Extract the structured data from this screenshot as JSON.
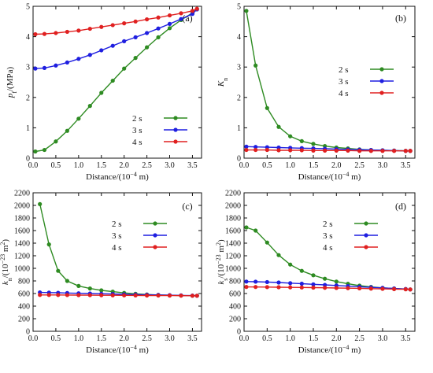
{
  "chart_data": [
    {
      "type": "line",
      "panel_label": "(a)",
      "xlabel_main": "Distance/(10",
      "xlabel_sup": "−4",
      "xlabel_end": " m)",
      "ylabel_main": "p",
      "ylabel_sub": "f",
      "ylabel_end": "/(MPa)",
      "xlim": [
        0,
        3.7
      ],
      "ylim": [
        0,
        5
      ],
      "xticks": [
        "0.0",
        "0.5",
        "1.0",
        "1.5",
        "2.0",
        "2.5",
        "3.0",
        "3.5"
      ],
      "yticks": [
        "0",
        "1",
        "2",
        "3",
        "4",
        "5"
      ],
      "legend": "right",
      "series": [
        {
          "name": "2 s",
          "color": "#2e8b22",
          "x": [
            0.05,
            0.25,
            0.5,
            0.75,
            1.0,
            1.25,
            1.5,
            1.75,
            2.0,
            2.25,
            2.5,
            2.75,
            3.0,
            3.25,
            3.5,
            3.6
          ],
          "y": [
            0.22,
            0.27,
            0.55,
            0.9,
            1.3,
            1.72,
            2.15,
            2.55,
            2.95,
            3.3,
            3.65,
            3.98,
            4.28,
            4.55,
            4.78,
            4.9
          ]
        },
        {
          "name": "3 s",
          "color": "#1f1fe0",
          "x": [
            0.05,
            0.25,
            0.5,
            0.75,
            1.0,
            1.25,
            1.5,
            1.75,
            2.0,
            2.25,
            2.5,
            2.75,
            3.0,
            3.25,
            3.5,
            3.6
          ],
          "y": [
            2.95,
            2.97,
            3.05,
            3.15,
            3.27,
            3.4,
            3.55,
            3.7,
            3.85,
            3.98,
            4.12,
            4.27,
            4.42,
            4.58,
            4.75,
            4.9
          ]
        },
        {
          "name": "4 s",
          "color": "#e02020",
          "x": [
            0.05,
            0.25,
            0.5,
            0.75,
            1.0,
            1.25,
            1.5,
            1.75,
            2.0,
            2.25,
            2.5,
            2.75,
            3.0,
            3.25,
            3.5,
            3.6
          ],
          "y": [
            4.08,
            4.09,
            4.12,
            4.16,
            4.2,
            4.26,
            4.32,
            4.38,
            4.44,
            4.5,
            4.57,
            4.63,
            4.7,
            4.77,
            4.85,
            4.92
          ]
        }
      ]
    },
    {
      "type": "line",
      "panel_label": "(b)",
      "xlabel_main": "Distance/(10",
      "xlabel_sup": "−4",
      "xlabel_end": " m)",
      "ylabel_main": "K",
      "ylabel_sub": "n",
      "ylabel_end": "",
      "xlim": [
        0,
        3.7
      ],
      "ylim": [
        0,
        5
      ],
      "xticks": [
        "0.0",
        "0.5",
        "1.0",
        "1.5",
        "2.0",
        "2.5",
        "3.0",
        "3.5"
      ],
      "yticks": [
        "0",
        "1",
        "2",
        "3",
        "4",
        "5"
      ],
      "legend": "right",
      "series": [
        {
          "name": "2 s",
          "color": "#2e8b22",
          "x": [
            0.05,
            0.25,
            0.5,
            0.75,
            1.0,
            1.25,
            1.5,
            1.75,
            2.0,
            2.25,
            2.5,
            2.75,
            3.0,
            3.25,
            3.5,
            3.6
          ],
          "y": [
            4.85,
            3.05,
            1.65,
            1.03,
            0.72,
            0.56,
            0.47,
            0.4,
            0.35,
            0.32,
            0.29,
            0.27,
            0.26,
            0.25,
            0.24,
            0.24
          ]
        },
        {
          "name": "3 s",
          "color": "#1f1fe0",
          "x": [
            0.05,
            0.25,
            0.5,
            0.75,
            1.0,
            1.25,
            1.5,
            1.75,
            2.0,
            2.25,
            2.5,
            2.75,
            3.0,
            3.25,
            3.5,
            3.6
          ],
          "y": [
            0.38,
            0.37,
            0.36,
            0.35,
            0.34,
            0.33,
            0.32,
            0.31,
            0.3,
            0.29,
            0.28,
            0.27,
            0.26,
            0.25,
            0.24,
            0.24
          ]
        },
        {
          "name": "4 s",
          "color": "#e02020",
          "x": [
            0.05,
            0.25,
            0.5,
            0.75,
            1.0,
            1.25,
            1.5,
            1.75,
            2.0,
            2.25,
            2.5,
            2.75,
            3.0,
            3.25,
            3.5,
            3.6
          ],
          "y": [
            0.27,
            0.27,
            0.27,
            0.26,
            0.26,
            0.26,
            0.25,
            0.25,
            0.25,
            0.25,
            0.24,
            0.24,
            0.24,
            0.24,
            0.24,
            0.24
          ]
        }
      ]
    },
    {
      "type": "line",
      "panel_label": "(c)",
      "xlabel_main": "Distance/(10",
      "xlabel_sup": "−4",
      "xlabel_end": " m)",
      "ylabel_main": "k",
      "ylabel_sub": "n",
      "ylabel_end": "/(10",
      "ylabel_sup": "−23",
      "ylabel_tail": " m",
      "ylabel_sup2": "2",
      "ylabel_close": ")",
      "xlim": [
        0,
        3.7
      ],
      "ylim": [
        0,
        2200
      ],
      "xticks": [
        "0.0",
        "0.5",
        "1.0",
        "1.5",
        "2.0",
        "2.5",
        "3.0",
        "3.5"
      ],
      "yticks": [
        "0",
        "200",
        "400",
        "600",
        "800",
        "1000",
        "1200",
        "1400",
        "1600",
        "1800",
        "2000",
        "2200"
      ],
      "legend": "top-right",
      "series": [
        {
          "name": "2 s",
          "color": "#2e8b22",
          "x": [
            0.15,
            0.35,
            0.55,
            0.75,
            1.0,
            1.25,
            1.5,
            1.75,
            2.0,
            2.25,
            2.5,
            2.75,
            3.0,
            3.25,
            3.5,
            3.6
          ],
          "y": [
            2020,
            1380,
            960,
            800,
            720,
            680,
            650,
            630,
            610,
            595,
            585,
            578,
            572,
            568,
            565,
            565
          ]
        },
        {
          "name": "3 s",
          "color": "#1f1fe0",
          "x": [
            0.15,
            0.35,
            0.55,
            0.75,
            1.0,
            1.25,
            1.5,
            1.75,
            2.0,
            2.25,
            2.5,
            2.75,
            3.0,
            3.25,
            3.5,
            3.6
          ],
          "y": [
            618,
            615,
            612,
            608,
            604,
            600,
            596,
            592,
            588,
            584,
            580,
            577,
            574,
            570,
            567,
            565
          ]
        },
        {
          "name": "4 s",
          "color": "#e02020",
          "x": [
            0.15,
            0.35,
            0.55,
            0.75,
            1.0,
            1.25,
            1.5,
            1.75,
            2.0,
            2.25,
            2.5,
            2.75,
            3.0,
            3.25,
            3.5,
            3.6
          ],
          "y": [
            578,
            578,
            577,
            576,
            575,
            574,
            573,
            572,
            571,
            570,
            569,
            568,
            567,
            566,
            565,
            565
          ]
        }
      ]
    },
    {
      "type": "line",
      "panel_label": "(d)",
      "xlabel_main": "Distance/(10",
      "xlabel_sup": "−4",
      "xlabel_end": " m)",
      "ylabel_main": "k",
      "ylabel_sub": "s",
      "ylabel_end": "/(10",
      "ylabel_sup": "−23",
      "ylabel_tail": " m",
      "ylabel_sup2": "2",
      "ylabel_close": ")",
      "xlim": [
        0,
        3.7
      ],
      "ylim": [
        0,
        2200
      ],
      "xticks": [
        "0.0",
        "0.5",
        "1.0",
        "1.5",
        "2.0",
        "2.5",
        "3.0",
        "3.5"
      ],
      "yticks": [
        "0",
        "200",
        "400",
        "600",
        "800",
        "1000",
        "1200",
        "1400",
        "1600",
        "1800",
        "2000",
        "2200"
      ],
      "legend": "top-right",
      "series": [
        {
          "name": "2 s",
          "color": "#2e8b22",
          "x": [
            0.05,
            0.25,
            0.5,
            0.75,
            1.0,
            1.25,
            1.5,
            1.75,
            2.0,
            2.25,
            2.5,
            2.75,
            3.0,
            3.25,
            3.5,
            3.6
          ],
          "y": [
            1650,
            1600,
            1410,
            1210,
            1060,
            960,
            890,
            835,
            790,
            755,
            725,
            705,
            690,
            680,
            670,
            665
          ]
        },
        {
          "name": "3 s",
          "color": "#1f1fe0",
          "x": [
            0.05,
            0.25,
            0.5,
            0.75,
            1.0,
            1.25,
            1.5,
            1.75,
            2.0,
            2.25,
            2.5,
            2.75,
            3.0,
            3.25,
            3.5,
            3.6
          ],
          "y": [
            790,
            788,
            782,
            775,
            765,
            756,
            746,
            737,
            728,
            718,
            708,
            698,
            690,
            680,
            672,
            665
          ]
        },
        {
          "name": "4 s",
          "color": "#e02020",
          "x": [
            0.05,
            0.25,
            0.5,
            0.75,
            1.0,
            1.25,
            1.5,
            1.75,
            2.0,
            2.25,
            2.5,
            2.75,
            3.0,
            3.25,
            3.5,
            3.6
          ],
          "y": [
            705,
            704,
            702,
            700,
            698,
            696,
            694,
            691,
            688,
            685,
            682,
            678,
            674,
            670,
            667,
            665
          ]
        }
      ]
    }
  ]
}
